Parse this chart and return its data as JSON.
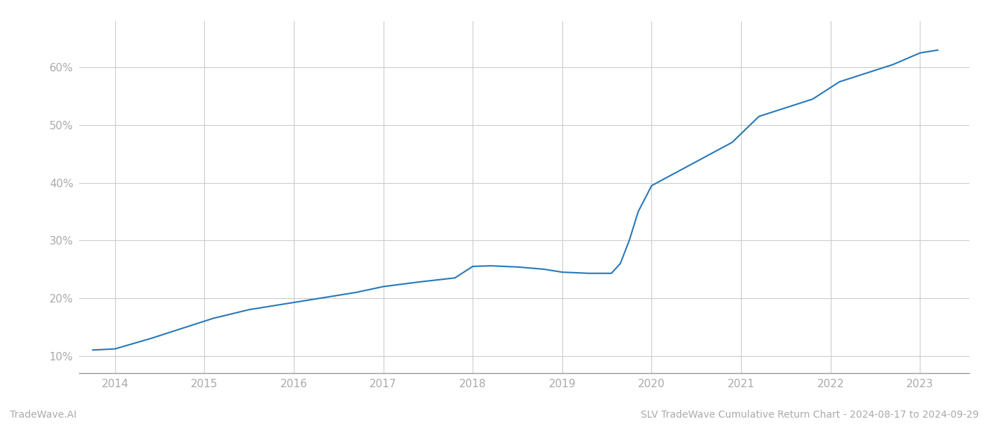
{
  "x_values": [
    2013.75,
    2014.0,
    2014.4,
    2014.8,
    2015.1,
    2015.5,
    2015.9,
    2016.3,
    2016.7,
    2017.0,
    2017.4,
    2017.8,
    2018.0,
    2018.2,
    2018.5,
    2018.8,
    2019.0,
    2019.3,
    2019.55,
    2019.65,
    2019.75,
    2019.85,
    2020.0,
    2020.3,
    2020.6,
    2020.9,
    2021.2,
    2021.5,
    2021.8,
    2022.1,
    2022.4,
    2022.7,
    2023.0,
    2023.2
  ],
  "y_values": [
    11.0,
    11.2,
    13.0,
    15.0,
    16.5,
    18.0,
    19.0,
    20.0,
    21.0,
    22.0,
    22.8,
    23.5,
    25.5,
    25.6,
    25.4,
    25.0,
    24.5,
    24.3,
    24.3,
    26.0,
    30.0,
    35.0,
    39.5,
    42.0,
    44.5,
    47.0,
    51.5,
    53.0,
    54.5,
    57.5,
    59.0,
    60.5,
    62.5,
    63.0
  ],
  "line_color": "#2878b8",
  "line_width": 1.5,
  "background_color": "#ffffff",
  "grid_color": "#cccccc",
  "ylabel_values": [
    10,
    20,
    30,
    40,
    50,
    60
  ],
  "x_ticks": [
    2014,
    2015,
    2016,
    2017,
    2018,
    2019,
    2020,
    2021,
    2022,
    2023
  ],
  "xlim": [
    2013.6,
    2023.55
  ],
  "ylim": [
    7,
    68
  ],
  "footer_left": "TradeWave.AI",
  "footer_right": "SLV TradeWave Cumulative Return Chart - 2024-08-17 to 2024-09-29",
  "footer_fontsize": 10,
  "tick_fontsize": 11,
  "spine_color": "#999999"
}
